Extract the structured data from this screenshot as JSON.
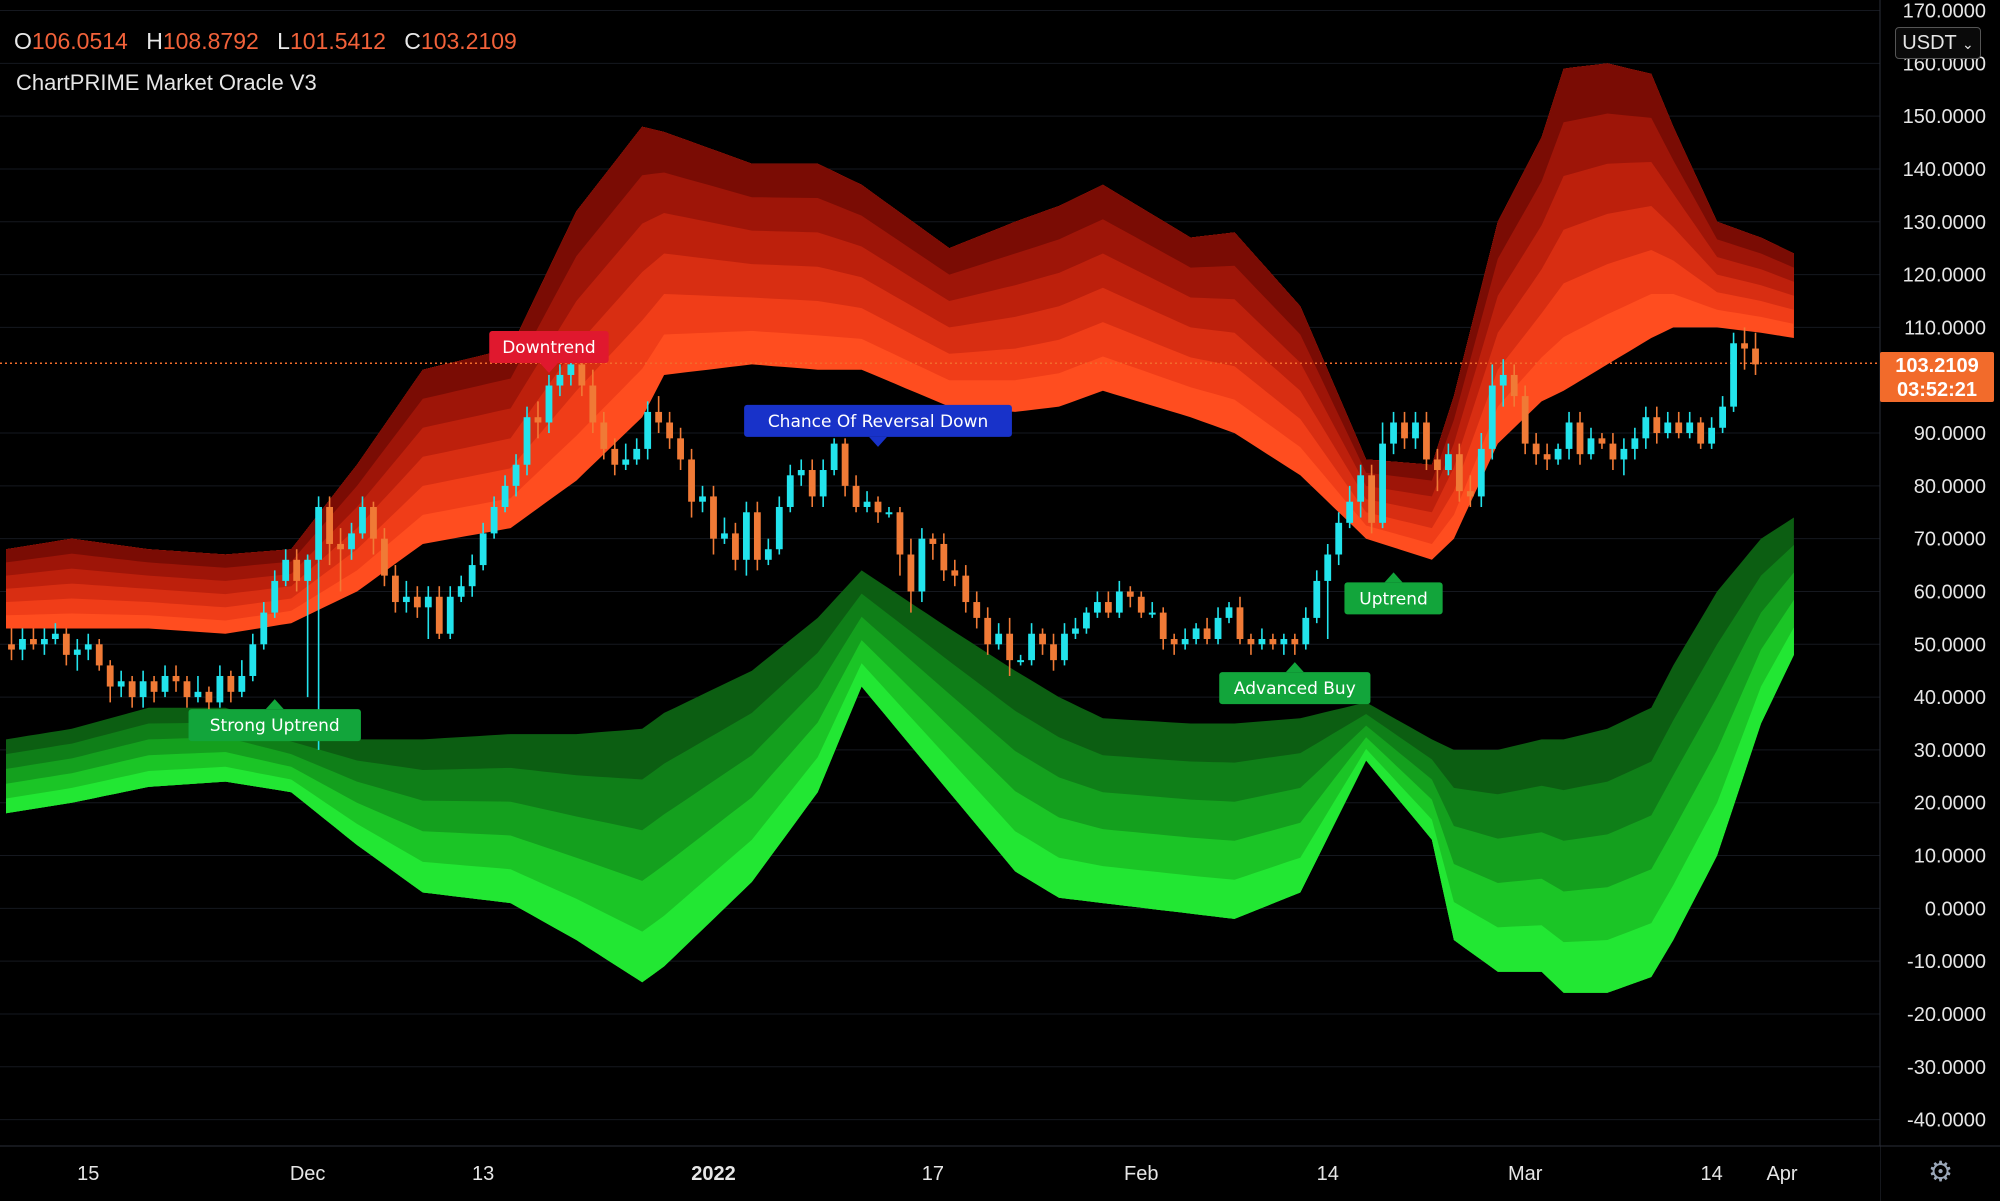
{
  "header": {
    "ohlc": [
      {
        "key": "O",
        "value": "106.0514"
      },
      {
        "key": "H",
        "value": "108.8792"
      },
      {
        "key": "L",
        "value": "101.5412"
      },
      {
        "key": "C",
        "value": "103.2109"
      }
    ],
    "indicator_name": "ChartPRIME Market Oracle V3",
    "currency": "USDT",
    "currency_icon": "chevron-down-icon"
  },
  "price_tag": {
    "price": "103.2109",
    "countdown": "03:52:21"
  },
  "settings_icon": "gear-icon",
  "colors": {
    "up_candle": "#22e3ec",
    "down_candle": "#f07a36",
    "upper_band": [
      "#ff4d1f",
      "#f03d18",
      "#d82e12",
      "#bd200c",
      "#9e1508",
      "#7a0c04"
    ],
    "lower_band": [
      "#0c5e12",
      "#0f7f18",
      "#14a01e",
      "#1bc526",
      "#22e733"
    ],
    "price_line": "#f26b2b",
    "label_green": "#12a53b",
    "label_red": "#e0182e",
    "label_blue": "#1832c9"
  },
  "chart_data": {
    "type": "candlestick",
    "title": "",
    "x_ticks": [
      "15",
      "Dec",
      "13",
      "2022",
      "17",
      "Feb",
      "14",
      "Mar",
      "14",
      "Apr"
    ],
    "y_ticks": [
      "170.0000",
      "160.0000",
      "150.0000",
      "140.0000",
      "130.0000",
      "120.0000",
      "110.0000",
      "90.0000",
      "80.0000",
      "70.0000",
      "60.0000",
      "50.0000",
      "40.0000",
      "30.0000",
      "20.0000",
      "10.0000",
      "0.0000",
      "-10.0000",
      "-20.0000",
      "-30.0000",
      "-40.0000"
    ],
    "y_tick_values": [
      170,
      160,
      150,
      140,
      130,
      120,
      110,
      90,
      80,
      70,
      60,
      50,
      40,
      30,
      20,
      10,
      0,
      -10,
      -20,
      -30,
      -40
    ],
    "ylim": [
      -45,
      172
    ],
    "last_price": 103.2109,
    "candles": [
      [
        50,
        49,
        53,
        47
      ],
      [
        49,
        51,
        53,
        47
      ],
      [
        51,
        50,
        53,
        49
      ],
      [
        50,
        51,
        53,
        48
      ],
      [
        51,
        52,
        54,
        50
      ],
      [
        52,
        48,
        53,
        46
      ],
      [
        48,
        49,
        51,
        45
      ],
      [
        49,
        50,
        52,
        47
      ],
      [
        50,
        46,
        51,
        45
      ],
      [
        46,
        42,
        47,
        39
      ],
      [
        42,
        43,
        45,
        40
      ],
      [
        43,
        40,
        44,
        38
      ],
      [
        40,
        43,
        45,
        38
      ],
      [
        43,
        41,
        44,
        39
      ],
      [
        41,
        44,
        46,
        40
      ],
      [
        44,
        43,
        46,
        41
      ],
      [
        43,
        40,
        44,
        38
      ],
      [
        40,
        41,
        44,
        39
      ],
      [
        41,
        39,
        42,
        37
      ],
      [
        39,
        44,
        46,
        38
      ],
      [
        44,
        41,
        45,
        39
      ],
      [
        41,
        44,
        47,
        40
      ],
      [
        44,
        50,
        52,
        43
      ],
      [
        50,
        56,
        58,
        49
      ],
      [
        56,
        62,
        64,
        55
      ],
      [
        62,
        66,
        68,
        61
      ],
      [
        66,
        62,
        68,
        60
      ],
      [
        62,
        66,
        67,
        40
      ],
      [
        66,
        76,
        78,
        30
      ],
      [
        76,
        69,
        78,
        65
      ],
      [
        69,
        68,
        72,
        60
      ],
      [
        68,
        71,
        73,
        66
      ],
      [
        71,
        76,
        78,
        70
      ],
      [
        76,
        70,
        77,
        67
      ],
      [
        70,
        63,
        72,
        61
      ],
      [
        63,
        58,
        65,
        56
      ],
      [
        58,
        59,
        62,
        56
      ],
      [
        59,
        57,
        61,
        55
      ],
      [
        57,
        59,
        61,
        51
      ],
      [
        59,
        52,
        61,
        51
      ],
      [
        52,
        59,
        61,
        51
      ],
      [
        59,
        61,
        63,
        58
      ],
      [
        61,
        65,
        67,
        59
      ],
      [
        65,
        71,
        73,
        64
      ],
      [
        71,
        76,
        78,
        70
      ],
      [
        76,
        80,
        82,
        75
      ],
      [
        80,
        84,
        86,
        78
      ],
      [
        84,
        93,
        95,
        82
      ],
      [
        93,
        92,
        96,
        89
      ],
      [
        92,
        99,
        101,
        90
      ],
      [
        99,
        101,
        103,
        97
      ],
      [
        101,
        103,
        105,
        99
      ],
      [
        103,
        99,
        104,
        97
      ],
      [
        99,
        92,
        102,
        90
      ],
      [
        92,
        87,
        94,
        85
      ],
      [
        87,
        84,
        89,
        82
      ],
      [
        84,
        85,
        88,
        83
      ],
      [
        85,
        87,
        89,
        84
      ],
      [
        87,
        94,
        96,
        85
      ],
      [
        94,
        92,
        97,
        90
      ],
      [
        92,
        89,
        94,
        87
      ],
      [
        89,
        85,
        91,
        83
      ],
      [
        85,
        77,
        87,
        74
      ],
      [
        77,
        78,
        80,
        75
      ],
      [
        78,
        70,
        80,
        67
      ],
      [
        70,
        71,
        74,
        69
      ],
      [
        71,
        66,
        73,
        64
      ],
      [
        66,
        75,
        77,
        63
      ],
      [
        75,
        66,
        77,
        64
      ],
      [
        66,
        68,
        70,
        65
      ],
      [
        68,
        76,
        78,
        67
      ],
      [
        76,
        82,
        84,
        75
      ],
      [
        82,
        83,
        85,
        80
      ],
      [
        83,
        78,
        85,
        76
      ],
      [
        78,
        83,
        85,
        76
      ],
      [
        83,
        88,
        89,
        82
      ],
      [
        88,
        80,
        89,
        78
      ],
      [
        80,
        76,
        82,
        75
      ],
      [
        76,
        77,
        79,
        75
      ],
      [
        77,
        75,
        78,
        73
      ],
      [
        75,
        75,
        76,
        74
      ],
      [
        75,
        67,
        76,
        63
      ],
      [
        67,
        60,
        70,
        56
      ],
      [
        60,
        70,
        72,
        58
      ],
      [
        70,
        69,
        71,
        66
      ],
      [
        69,
        64,
        71,
        62
      ],
      [
        64,
        63,
        66,
        61
      ],
      [
        63,
        58,
        65,
        56
      ],
      [
        58,
        55,
        60,
        53
      ],
      [
        55,
        50,
        57,
        48
      ],
      [
        50,
        52,
        54,
        49
      ],
      [
        52,
        47,
        55,
        44
      ],
      [
        47,
        47,
        48,
        46
      ],
      [
        47,
        52,
        54,
        46
      ],
      [
        52,
        50,
        53,
        48
      ],
      [
        50,
        47,
        52,
        45
      ],
      [
        47,
        52,
        54,
        46
      ],
      [
        52,
        53,
        55,
        51
      ],
      [
        53,
        56,
        57,
        52
      ],
      [
        56,
        58,
        60,
        55
      ],
      [
        58,
        56,
        60,
        55
      ],
      [
        56,
        60,
        62,
        55
      ],
      [
        60,
        59,
        61,
        57
      ],
      [
        59,
        56,
        60,
        55
      ],
      [
        56,
        56,
        58,
        55
      ],
      [
        56,
        51,
        57,
        49
      ],
      [
        51,
        50,
        52,
        48
      ],
      [
        50,
        51,
        53,
        49
      ],
      [
        51,
        53,
        54,
        50
      ],
      [
        53,
        51,
        55,
        50
      ],
      [
        51,
        55,
        57,
        50
      ],
      [
        55,
        57,
        58,
        54
      ],
      [
        57,
        51,
        59,
        50
      ],
      [
        51,
        50,
        52,
        48
      ],
      [
        50,
        51,
        53,
        49
      ],
      [
        51,
        50,
        52,
        49
      ],
      [
        50,
        51,
        52,
        48
      ],
      [
        51,
        50,
        52,
        48
      ],
      [
        50,
        55,
        57,
        49
      ],
      [
        55,
        62,
        64,
        54
      ],
      [
        62,
        67,
        69,
        51
      ],
      [
        67,
        73,
        75,
        65
      ],
      [
        73,
        77,
        80,
        72
      ],
      [
        77,
        82,
        84,
        74
      ],
      [
        82,
        73,
        84,
        71
      ],
      [
        73,
        88,
        92,
        72
      ],
      [
        88,
        92,
        94,
        86
      ],
      [
        92,
        89,
        94,
        87
      ],
      [
        89,
        92,
        94,
        87
      ],
      [
        92,
        85,
        94,
        83
      ],
      [
        85,
        83,
        87,
        79
      ],
      [
        83,
        86,
        88,
        82
      ],
      [
        86,
        79,
        88,
        77
      ],
      [
        79,
        78,
        82,
        76
      ],
      [
        78,
        87,
        90,
        76
      ],
      [
        87,
        99,
        103,
        85
      ],
      [
        99,
        101,
        104,
        95
      ],
      [
        101,
        97,
        103,
        95
      ],
      [
        97,
        88,
        99,
        86
      ],
      [
        88,
        86,
        90,
        84
      ],
      [
        86,
        85,
        88,
        83
      ],
      [
        85,
        87,
        88,
        84
      ],
      [
        87,
        92,
        94,
        85
      ],
      [
        92,
        86,
        94,
        84
      ],
      [
        86,
        89,
        91,
        85
      ],
      [
        89,
        88,
        90,
        87
      ],
      [
        88,
        85,
        90,
        83
      ],
      [
        85,
        87,
        89,
        82
      ],
      [
        87,
        89,
        91,
        85
      ],
      [
        89,
        93,
        95,
        87
      ],
      [
        93,
        90,
        95,
        88
      ],
      [
        90,
        92,
        94,
        89
      ],
      [
        92,
        90,
        94,
        89
      ],
      [
        90,
        92,
        94,
        89
      ],
      [
        92,
        88,
        93,
        87
      ],
      [
        88,
        91,
        93,
        87
      ],
      [
        91,
        95,
        97,
        90
      ],
      [
        95,
        107,
        109,
        94
      ],
      [
        107,
        106,
        110,
        102
      ],
      [
        106,
        103,
        109,
        101
      ]
    ],
    "upper_band": {
      "x": [
        0,
        6,
        13,
        20,
        26,
        32,
        38,
        46,
        52,
        58,
        60,
        68,
        74,
        78,
        86,
        92,
        96,
        100,
        108,
        112,
        118,
        124,
        130,
        132,
        136,
        140,
        142,
        146,
        150,
        152,
        156,
        160,
        163
      ],
      "top": [
        68,
        70,
        68,
        67,
        68,
        84,
        102,
        106,
        132,
        148,
        147,
        141,
        141,
        137,
        125,
        130,
        133,
        137,
        127,
        128,
        114,
        85,
        84,
        97,
        130,
        146,
        159,
        160,
        158,
        148,
        130,
        127,
        124
      ],
      "bot": [
        53,
        53,
        53,
        52,
        54,
        60,
        69,
        72,
        81,
        93,
        101,
        103,
        102,
        102,
        95,
        94,
        95,
        98,
        93,
        90,
        82,
        70,
        66,
        70,
        88,
        96,
        98,
        103,
        108,
        110,
        110,
        109,
        108
      ]
    },
    "lower_band": {
      "x": [
        0,
        6,
        13,
        20,
        26,
        32,
        38,
        46,
        52,
        58,
        60,
        68,
        74,
        78,
        86,
        92,
        96,
        100,
        108,
        112,
        118,
        124,
        130,
        132,
        136,
        140,
        142,
        146,
        150,
        152,
        156,
        160,
        163
      ],
      "top": [
        32,
        34,
        38,
        38,
        34,
        32,
        32,
        33,
        33,
        34,
        37,
        45,
        55,
        64,
        53,
        45,
        40,
        36,
        35,
        35,
        36,
        39,
        32,
        30,
        30,
        32,
        32,
        34,
        38,
        46,
        60,
        70,
        74
      ],
      "bot": [
        18,
        20,
        23,
        24,
        22,
        12,
        3,
        1,
        -6,
        -14,
        -11,
        5,
        22,
        42,
        22,
        7,
        2,
        1,
        -1,
        -2,
        3,
        28,
        13,
        -6,
        -12,
        -12,
        -16,
        -16,
        -13,
        -6,
        10,
        35,
        48
      ]
    },
    "signals": [
      {
        "label": "Strong Uptrend",
        "type": "buy",
        "at": 24,
        "value": 40
      },
      {
        "label": "Downtrend",
        "type": "sell",
        "at": 49,
        "value": 101
      },
      {
        "label": "Chance Of Reversal Down",
        "type": "reversal",
        "at": 79,
        "value": 87
      },
      {
        "label": "Uptrend",
        "type": "buy",
        "at": 126,
        "value": 64
      },
      {
        "label": "Advanced Buy",
        "type": "buy",
        "at": 117,
        "value": 47
      }
    ]
  }
}
